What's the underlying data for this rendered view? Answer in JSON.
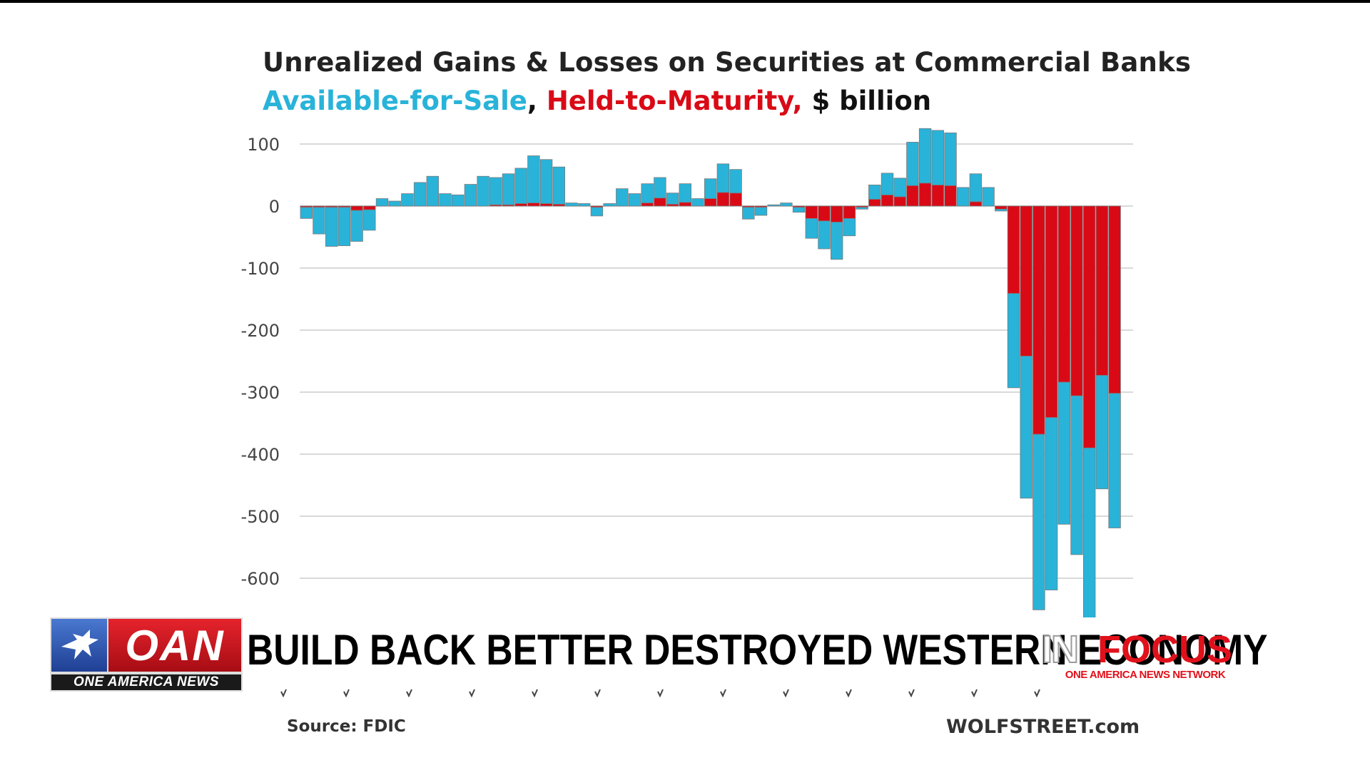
{
  "chart_data": {
    "type": "bar",
    "stacked": true,
    "title": "Unrealized Gains & Losses on Securities at Commercial Banks",
    "subtitle_parts": {
      "afs": "Available-for-Sale",
      "sep1": ", ",
      "htm": "Held-to-Maturity,",
      "unit": " $ billion"
    },
    "ylim": [
      -660,
      130
    ],
    "yticks": [
      100,
      0,
      -100,
      -200,
      -300,
      -400,
      -500,
      -600
    ],
    "ytick_labels": [
      "100",
      "0",
      "-100",
      "-200",
      "-300",
      "-400",
      "-500",
      "-600"
    ],
    "colors": {
      "afs": "#29b3d9",
      "htm": "#d90a16"
    },
    "series": [
      {
        "name": "Available-for-Sale",
        "values": [
          -18,
          -43,
          -63,
          -62,
          -50,
          -33,
          12,
          8,
          20,
          38,
          48,
          20,
          18,
          35,
          48,
          44,
          50,
          57,
          76,
          71,
          60,
          5,
          4,
          -14,
          4,
          28,
          20,
          31,
          33,
          18,
          30,
          12,
          32,
          46,
          38,
          -19,
          -13,
          2,
          5,
          -8,
          -32,
          -45,
          -60,
          -28,
          -3,
          23,
          35,
          30,
          70,
          88,
          88,
          85,
          30,
          45,
          30,
          -3,
          -152,
          -229,
          -283,
          -278,
          -229,
          -256,
          -274,
          -183,
          -217
        ]
      },
      {
        "name": "Held-to-Maturity",
        "values": [
          -2,
          -2,
          -2,
          -2,
          -7,
          -6,
          0,
          0,
          0,
          0,
          0,
          0,
          0,
          0,
          0,
          2,
          2,
          4,
          5,
          4,
          3,
          0,
          0,
          -2,
          0,
          0,
          0,
          5,
          13,
          3,
          6,
          0,
          12,
          22,
          21,
          -2,
          -2,
          0,
          0,
          -2,
          -20,
          -24,
          -26,
          -20,
          -2,
          11,
          18,
          15,
          33,
          37,
          34,
          33,
          0,
          7,
          0,
          -5,
          -141,
          -242,
          -368,
          -341,
          -284,
          -306,
          -390,
          -273,
          -302
        ]
      }
    ],
    "source": "Source: FDIC",
    "site": "WOLFSTREET.com"
  },
  "lower_third": {
    "logo_text": "OAN",
    "logo_sub": "ONE AMERICA NEWS",
    "headline": "BUILD BACK BETTER DESTROYED WESTERN ECONOMY",
    "show_in": "IN",
    "show_focus": "FOCUS",
    "show_network": "ONE AMERICA NEWS NETWORK"
  }
}
